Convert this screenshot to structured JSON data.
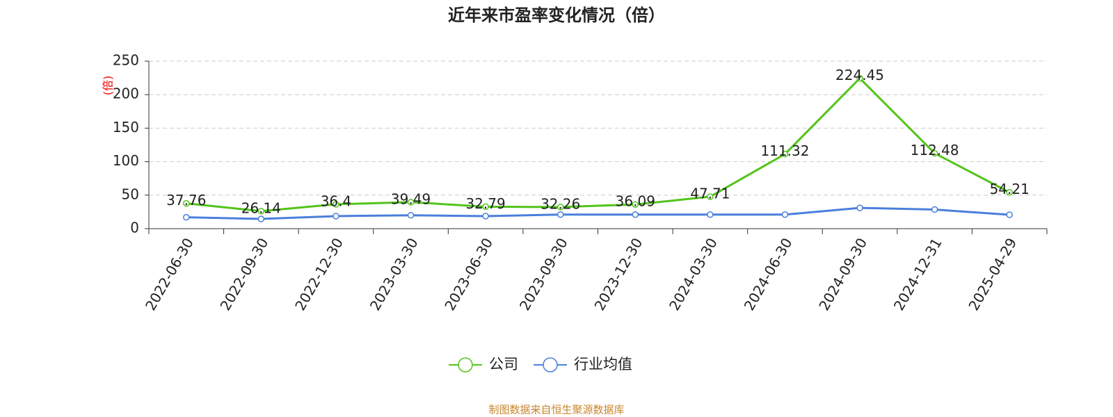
{
  "chart_data": {
    "type": "line",
    "title": "近年来市盈率变化情况（倍）",
    "y_label": "(倍)",
    "footer": "制图数据来自恒生聚源数据库",
    "categories": [
      "2022-06-30",
      "2022-09-30",
      "2022-12-30",
      "2023-03-30",
      "2023-06-30",
      "2023-09-30",
      "2023-12-30",
      "2024-03-30",
      "2024-06-30",
      "2024-09-30",
      "2024-12-31",
      "2025-04-29"
    ],
    "series": [
      {
        "name": "公司",
        "color": "#52c41a",
        "values": [
          37.76,
          26.14,
          36.4,
          39.49,
          32.79,
          32.26,
          36.09,
          47.71,
          111.32,
          224.45,
          112.48,
          54.21
        ],
        "show_labels": true
      },
      {
        "name": "行业均值",
        "color": "#4a7fdc",
        "values": [
          17,
          14.5,
          18.7,
          20,
          18.7,
          21,
          21,
          21,
          21,
          31,
          28.5,
          20.7
        ],
        "show_labels": false
      }
    ],
    "ylim": [
      0,
      250
    ],
    "yticks": [
      0,
      50,
      100,
      150,
      200,
      250
    ],
    "grid": true
  }
}
